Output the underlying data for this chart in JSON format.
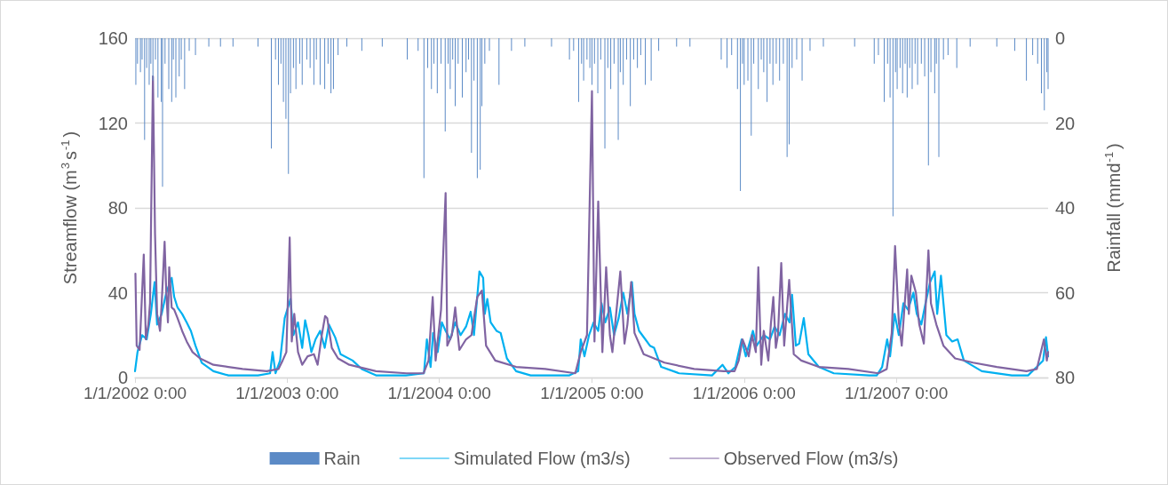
{
  "chart_data": {
    "type": "line",
    "ylabel": "Streamflow (m$^{3}$s$^{-1}$)",
    "y2label": "Rainfall (mmd$^{-1}$)",
    "xlim": [
      "2002-01-01",
      "2007-12-31"
    ],
    "xticks": [
      {
        "value": "2002-01-01",
        "label": "1/1/2002 0:00"
      },
      {
        "value": "2003-01-01",
        "label": "1/1/2003 0:00"
      },
      {
        "value": "2004-01-01",
        "label": "1/1/2004 0:00"
      },
      {
        "value": "2005-01-01",
        "label": "1/1/2005 0:00"
      },
      {
        "value": "2006-01-01",
        "label": "1/1/2006 0:00"
      },
      {
        "value": "2007-01-01",
        "label": "1/1/2007 0:00"
      }
    ],
    "ylim": [
      0,
      160
    ],
    "yticks": [
      0,
      40,
      80,
      120,
      160
    ],
    "y2lim": [
      80,
      0
    ],
    "y2ticks": [
      0,
      20,
      40,
      60,
      80
    ],
    "grid": "y",
    "legend": "bottom",
    "marker": "none",
    "line_style": "solid",
    "series": [
      {
        "name": "Rain",
        "type": "bar",
        "axis": "y2",
        "color": "#5b8ac6",
        "x": [
          "2002-01-03",
          "2002-01-07",
          "2002-01-14",
          "2002-01-18",
          "2002-01-24",
          "2002-01-29",
          "2002-02-04",
          "2002-02-08",
          "2002-02-13",
          "2002-02-19",
          "2002-02-25",
          "2002-03-05",
          "2002-03-08",
          "2002-03-14",
          "2002-03-23",
          "2002-03-30",
          "2002-04-03",
          "2002-04-09",
          "2002-04-17",
          "2002-04-22",
          "2002-04-30",
          "2002-05-11",
          "2002-05-26",
          "2002-06-27",
          "2002-07-25",
          "2002-08-24",
          "2002-10-23",
          "2002-11-24",
          "2002-12-04",
          "2002-12-11",
          "2002-12-17",
          "2002-12-23",
          "2002-12-29",
          "2003-01-04",
          "2003-01-09",
          "2003-01-16",
          "2003-01-22",
          "2003-01-31",
          "2003-02-06",
          "2003-02-17",
          "2003-02-25",
          "2003-03-06",
          "2003-03-12",
          "2003-03-21",
          "2003-04-01",
          "2003-04-09",
          "2003-04-16",
          "2003-04-22",
          "2003-05-03",
          "2003-05-24",
          "2003-06-29",
          "2003-08-17",
          "2003-10-16",
          "2003-11-11",
          "2003-11-25",
          "2003-12-04",
          "2003-12-13",
          "2003-12-19",
          "2003-12-27",
          "2004-01-05",
          "2004-01-15",
          "2004-01-22",
          "2004-01-27",
          "2004-02-02",
          "2004-02-08",
          "2004-02-15",
          "2004-02-25",
          "2004-03-05",
          "2004-03-11",
          "2004-03-18",
          "2004-03-24",
          "2004-04-01",
          "2004-04-08",
          "2004-04-12",
          "2004-04-19",
          "2004-04-30",
          "2004-05-23",
          "2004-06-22",
          "2004-07-24",
          "2004-09-26",
          "2004-11-08",
          "2004-11-18",
          "2004-11-30",
          "2004-12-07",
          "2004-12-12",
          "2004-12-20",
          "2004-12-27",
          "2005-01-01",
          "2005-01-07",
          "2005-01-15",
          "2005-01-22",
          "2005-02-01",
          "2005-02-08",
          "2005-02-15",
          "2005-02-23",
          "2005-03-05",
          "2005-03-10",
          "2005-03-17",
          "2005-03-25",
          "2005-04-03",
          "2005-04-11",
          "2005-04-20",
          "2005-04-28",
          "2005-05-09",
          "2005-05-23",
          "2005-06-10",
          "2005-07-23",
          "2005-08-24",
          "2005-11-07",
          "2005-11-21",
          "2005-12-02",
          "2005-12-16",
          "2005-12-23",
          "2005-12-28",
          "2006-01-01",
          "2006-01-10",
          "2006-01-18",
          "2006-01-24",
          "2006-02-04",
          "2006-02-11",
          "2006-02-17",
          "2006-02-25",
          "2006-03-04",
          "2006-03-11",
          "2006-03-19",
          "2006-03-27",
          "2006-04-05",
          "2006-04-14",
          "2006-04-19",
          "2006-04-26",
          "2006-05-07",
          "2006-05-20",
          "2006-06-08",
          "2006-07-10",
          "2006-09-23",
          "2006-11-09",
          "2006-11-19",
          "2006-12-03",
          "2006-12-11",
          "2006-12-17",
          "2006-12-24",
          "2006-12-30",
          "2007-01-03",
          "2007-01-10",
          "2007-01-16",
          "2007-01-22",
          "2007-01-27",
          "2007-02-02",
          "2007-02-08",
          "2007-02-15",
          "2007-02-21",
          "2007-03-02",
          "2007-03-10",
          "2007-03-19",
          "2007-03-25",
          "2007-04-03",
          "2007-04-07",
          "2007-04-13",
          "2007-04-24",
          "2007-05-05",
          "2007-05-26",
          "2007-06-27",
          "2007-08-30",
          "2007-10-12",
          "2007-11-09",
          "2007-11-24",
          "2007-12-06",
          "2007-12-15",
          "2007-12-22",
          "2007-12-28",
          "2007-12-31"
        ],
        "values": [
          11,
          6,
          8,
          5,
          24,
          7,
          11,
          6,
          10,
          5,
          14,
          15,
          35,
          6,
          12,
          15,
          5,
          14,
          9,
          5,
          12,
          3,
          4,
          2,
          2,
          2,
          2,
          26,
          5,
          11,
          6,
          15,
          19,
          32,
          13,
          7,
          12,
          6,
          11,
          5,
          7,
          11,
          5,
          11,
          12,
          6,
          13,
          12,
          4,
          2,
          3,
          2,
          5,
          3,
          33,
          7,
          12,
          6,
          13,
          6,
          22,
          6,
          12,
          5,
          16,
          6,
          14,
          8,
          5,
          27,
          10,
          33,
          31,
          16,
          6,
          3,
          11,
          3,
          2,
          2,
          5,
          3,
          15,
          6,
          10,
          5,
          7,
          11,
          6,
          13,
          5,
          26,
          7,
          12,
          6,
          24,
          8,
          11,
          5,
          16,
          5,
          7,
          4,
          11,
          10,
          3,
          2,
          2,
          5,
          7,
          4,
          12,
          36,
          6,
          11,
          10,
          23,
          6,
          12,
          5,
          8,
          15,
          6,
          11,
          6,
          10,
          6,
          28,
          25,
          7,
          5,
          10,
          3,
          2,
          2,
          6,
          4,
          15,
          6,
          14,
          42,
          8,
          12,
          7,
          13,
          6,
          14,
          7,
          12,
          6,
          11,
          6,
          9,
          30,
          8,
          13,
          6,
          28,
          5,
          4,
          7,
          2,
          2,
          3,
          10,
          4,
          6,
          13,
          17,
          8,
          12
        ]
      },
      {
        "name": "Simulated Flow (m3/s)",
        "color": "#00b0f0",
        "x": [
          "2002-01-01",
          "2002-01-07",
          "2002-01-18",
          "2002-01-29",
          "2002-02-08",
          "2002-02-17",
          "2002-02-23",
          "2002-03-06",
          "2002-03-17",
          "2002-03-30",
          "2002-04-05",
          "2002-04-13",
          "2002-04-24",
          "2002-05-05",
          "2002-05-15",
          "2002-05-26",
          "2002-06-10",
          "2002-07-08",
          "2002-08-13",
          "2002-10-23",
          "2002-11-21",
          "2002-11-27",
          "2002-12-04",
          "2002-12-15",
          "2002-12-26",
          "2003-01-09",
          "2003-01-16",
          "2003-01-27",
          "2003-02-06",
          "2003-02-13",
          "2003-02-21",
          "2003-02-28",
          "2003-03-10",
          "2003-03-21",
          "2003-04-01",
          "2003-04-11",
          "2003-04-26",
          "2003-05-09",
          "2003-06-07",
          "2003-06-29",
          "2003-08-02",
          "2003-10-13",
          "2003-11-25",
          "2003-12-02",
          "2003-12-11",
          "2003-12-17",
          "2003-12-28",
          "2004-01-07",
          "2004-01-16",
          "2004-01-27",
          "2004-02-08",
          "2004-02-21",
          "2004-03-05",
          "2004-03-16",
          "2004-03-24",
          "2004-04-06",
          "2004-04-15",
          "2004-04-19",
          "2004-04-25",
          "2004-05-03",
          "2004-05-17",
          "2004-05-27",
          "2004-06-11",
          "2004-07-03",
          "2004-08-07",
          "2004-11-08",
          "2004-11-29",
          "2004-12-05",
          "2004-12-14",
          "2004-12-25",
          "2005-01-05",
          "2005-01-16",
          "2005-01-24",
          "2005-02-02",
          "2005-02-13",
          "2005-02-23",
          "2005-03-06",
          "2005-03-17",
          "2005-03-27",
          "2005-04-07",
          "2005-04-13",
          "2005-04-24",
          "2005-05-09",
          "2005-05-20",
          "2005-05-30",
          "2005-06-16",
          "2005-07-29",
          "2005-10-16",
          "2005-11-10",
          "2005-11-24",
          "2005-12-11",
          "2005-12-26",
          "2006-01-05",
          "2006-01-22",
          "2006-01-31",
          "2006-02-17",
          "2006-03-04",
          "2006-03-15",
          "2006-03-27",
          "2006-04-09",
          "2006-04-20",
          "2006-04-26",
          "2006-05-05",
          "2006-05-13",
          "2006-05-24",
          "2006-06-04",
          "2006-06-29",
          "2006-08-04",
          "2006-10-28",
          "2006-11-15",
          "2006-11-28",
          "2006-12-10",
          "2006-12-17",
          "2006-12-28",
          "2007-01-07",
          "2007-01-18",
          "2007-01-29",
          "2007-02-11",
          "2007-02-19",
          "2007-03-02",
          "2007-03-12",
          "2007-03-23",
          "2007-04-03",
          "2007-04-09",
          "2007-04-18",
          "2007-05-01",
          "2007-05-15",
          "2007-05-28",
          "2007-06-12",
          "2007-07-25",
          "2007-10-05",
          "2007-11-13",
          "2007-12-04",
          "2007-12-19",
          "2007-12-26",
          "2007-12-31"
        ],
        "values": [
          3,
          12,
          20,
          18,
          30,
          45,
          25,
          30,
          40,
          47,
          38,
          33,
          30,
          26,
          22,
          15,
          7,
          3,
          1,
          1,
          2,
          12,
          2,
          8,
          28,
          37,
          20,
          26,
          14,
          27,
          20,
          12,
          18,
          22,
          14,
          25,
          19,
          11,
          8,
          4,
          1,
          1,
          2,
          18,
          5,
          21,
          12,
          26,
          22,
          18,
          26,
          20,
          24,
          31,
          20,
          50,
          47,
          30,
          37,
          26,
          22,
          21,
          9,
          3,
          1,
          1,
          3,
          18,
          10,
          20,
          26,
          22,
          35,
          26,
          33,
          20,
          28,
          40,
          30,
          45,
          30,
          22,
          18,
          15,
          14,
          5,
          2,
          1,
          6,
          2,
          5,
          18,
          10,
          22,
          15,
          20,
          18,
          24,
          20,
          30,
          26,
          39,
          15,
          16,
          28,
          11,
          5,
          2,
          1,
          1,
          5,
          18,
          10,
          30,
          20,
          35,
          32,
          40,
          30,
          25,
          35,
          45,
          50,
          30,
          48,
          20,
          17,
          18,
          8,
          3,
          1,
          1,
          5,
          8,
          19,
          10
        ]
      },
      {
        "name": "Observed Flow (m3/s)",
        "color": "#8064a2",
        "x": [
          "2002-01-02",
          "2002-01-05",
          "2002-01-12",
          "2002-01-22",
          "2002-01-27",
          "2002-02-02",
          "2002-02-06",
          "2002-02-13",
          "2002-02-18",
          "2002-02-23",
          "2002-03-02",
          "2002-03-06",
          "2002-03-13",
          "2002-03-17",
          "2002-03-21",
          "2002-03-24",
          "2002-03-30",
          "2002-04-05",
          "2002-04-13",
          "2002-04-24",
          "2002-05-05",
          "2002-05-19",
          "2002-06-06",
          "2002-07-08",
          "2002-08-13",
          "2002-09-16",
          "2002-11-13",
          "2002-12-11",
          "2002-12-21",
          "2002-12-30",
          "2003-01-07",
          "2003-01-12",
          "2003-01-18",
          "2003-01-27",
          "2003-02-06",
          "2003-02-19",
          "2003-03-06",
          "2003-03-15",
          "2003-03-25",
          "2003-04-02",
          "2003-04-07",
          "2003-04-18",
          "2003-05-03",
          "2003-05-30",
          "2003-08-02",
          "2003-10-14",
          "2003-11-24",
          "2003-12-06",
          "2003-12-16",
          "2003-12-23",
          "2004-01-05",
          "2004-01-16",
          "2004-01-20",
          "2004-01-31",
          "2004-02-08",
          "2004-02-18",
          "2004-03-05",
          "2004-03-18",
          "2004-03-24",
          "2004-04-01",
          "2004-04-12",
          "2004-04-22",
          "2004-05-14",
          "2004-07-03",
          "2004-09-11",
          "2004-11-22",
          "2004-12-05",
          "2004-12-20",
          "2005-01-01",
          "2005-01-07",
          "2005-01-16",
          "2005-01-26",
          "2005-02-04",
          "2005-02-13",
          "2005-02-19",
          "2005-02-28",
          "2005-03-10",
          "2005-03-20",
          "2005-03-27",
          "2005-04-05",
          "2005-04-13",
          "2005-05-05",
          "2005-06-24",
          "2005-09-03",
          "2005-11-13",
          "2005-12-09",
          "2005-12-19",
          "2005-12-28",
          "2006-01-03",
          "2006-01-12",
          "2006-01-20",
          "2006-01-29",
          "2006-02-04",
          "2006-02-11",
          "2006-02-17",
          "2006-02-28",
          "2006-03-06",
          "2006-03-12",
          "2006-03-18",
          "2006-03-23",
          "2006-03-31",
          "2006-04-07",
          "2006-04-19",
          "2006-04-30",
          "2006-05-18",
          "2006-06-29",
          "2006-09-08",
          "2006-11-19",
          "2006-12-09",
          "2006-12-21",
          "2006-12-29",
          "2007-01-07",
          "2007-01-14",
          "2007-01-27",
          "2007-01-31",
          "2007-02-06",
          "2007-02-17",
          "2007-02-25",
          "2007-03-08",
          "2007-03-19",
          "2007-03-25",
          "2007-04-07",
          "2007-04-24",
          "2007-05-22",
          "2007-07-04",
          "2007-08-30",
          "2007-11-09",
          "2007-12-04",
          "2007-12-21",
          "2007-12-28",
          "2007-12-31"
        ],
        "values": [
          49,
          15,
          13,
          58,
          18,
          25,
          35,
          142,
          68,
          30,
          22,
          35,
          64,
          40,
          26,
          52,
          33,
          32,
          28,
          22,
          17,
          12,
          9,
          6,
          5,
          4,
          3,
          4,
          8,
          12,
          66,
          17,
          30,
          12,
          6,
          10,
          11,
          6,
          20,
          29,
          28,
          14,
          9,
          6,
          3,
          2,
          2,
          8,
          38,
          8,
          32,
          87,
          15,
          20,
          33,
          13,
          18,
          20,
          28,
          38,
          41,
          15,
          8,
          5,
          4,
          2,
          12,
          20,
          135,
          17,
          83,
          12,
          52,
          20,
          12,
          30,
          50,
          16,
          25,
          45,
          21,
          11,
          7,
          4,
          3,
          3,
          8,
          18,
          15,
          10,
          20,
          12,
          52,
          6,
          22,
          8,
          25,
          38,
          14,
          20,
          54,
          15,
          46,
          11,
          8,
          5,
          4,
          2,
          4,
          21,
          62,
          26,
          15,
          51,
          30,
          48,
          40,
          25,
          16,
          60,
          35,
          25,
          15,
          9,
          7,
          5,
          3,
          4,
          18,
          8,
          12
        ]
      }
    ]
  }
}
